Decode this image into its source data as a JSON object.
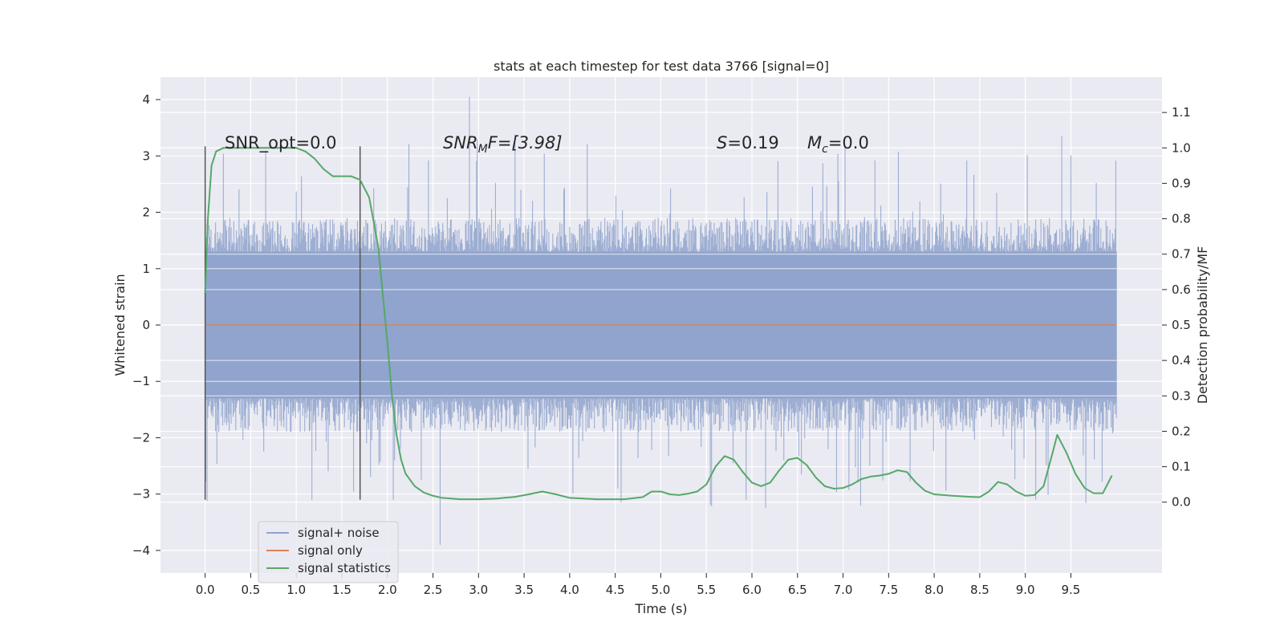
{
  "chart_data": {
    "type": "line",
    "title": "stats at each timestep for test data 3766 [signal=0]",
    "xlabel": "Time (s)",
    "ylabel_left": "Whitened strain",
    "ylabel_right": "Detection probability/MF",
    "xlim": [
      -0.49,
      10.5
    ],
    "ylim_left": [
      -4.4,
      4.4
    ],
    "ylim_right": [
      -0.2,
      1.2
    ],
    "x_ticks": [
      "0.0",
      "0.5",
      "1.0",
      "1.5",
      "2.0",
      "2.5",
      "3.0",
      "3.5",
      "4.0",
      "4.5",
      "5.0",
      "5.5",
      "6.0",
      "6.5",
      "7.0",
      "7.5",
      "8.0",
      "8.5",
      "9.0",
      "9.5"
    ],
    "y_ticks_left": [
      "4",
      "3",
      "2",
      "1",
      "0",
      "−1",
      "−2",
      "−3",
      "−4"
    ],
    "y_ticks_right": [
      "1.1",
      "1.0",
      "0.9",
      "0.8",
      "0.7",
      "0.6",
      "0.5",
      "0.4",
      "0.3",
      "0.2",
      "0.1",
      "0.0"
    ],
    "grid": true,
    "legend_position": "lower-left",
    "series": [
      {
        "name": "signal+ noise",
        "color": "#8fa3cc",
        "axis": "left",
        "x_range": [
          0.0,
          10.0
        ],
        "y_core_range": [
          -1.3,
          1.3
        ],
        "y_typical_envelope": [
          -1.9,
          1.9
        ],
        "y_extremes": [
          -3.9,
          4.05
        ],
        "description_points": [
          {
            "x": 2.9,
            "y": 4.05
          },
          {
            "x": 2.58,
            "y": -3.9
          },
          {
            "x": 3.4,
            "y": 3.38
          },
          {
            "x": 9.4,
            "y": 3.35
          }
        ]
      },
      {
        "name": "signal only",
        "color": "#dd8452",
        "axis": "left",
        "x": [
          0.0,
          10.0
        ],
        "y": [
          0.0,
          0.0
        ]
      },
      {
        "name": "signal statistics",
        "color": "#55a868",
        "axis": "right",
        "x": [
          0.0,
          0.03,
          0.07,
          0.12,
          0.2,
          0.35,
          0.5,
          0.7,
          0.9,
          1.0,
          1.1,
          1.2,
          1.3,
          1.4,
          1.5,
          1.6,
          1.7,
          1.8,
          1.9,
          2.0,
          2.05,
          2.1,
          2.15,
          2.2,
          2.3,
          2.4,
          2.5,
          2.6,
          2.8,
          3.0,
          3.2,
          3.4,
          3.55,
          3.7,
          3.85,
          4.0,
          4.3,
          4.6,
          4.8,
          4.9,
          5.0,
          5.1,
          5.2,
          5.3,
          5.4,
          5.5,
          5.6,
          5.7,
          5.8,
          5.9,
          6.0,
          6.1,
          6.2,
          6.3,
          6.4,
          6.5,
          6.6,
          6.7,
          6.8,
          6.9,
          7.0,
          7.1,
          7.2,
          7.3,
          7.4,
          7.5,
          7.6,
          7.7,
          7.8,
          7.9,
          8.0,
          8.2,
          8.4,
          8.5,
          8.6,
          8.7,
          8.8,
          8.9,
          9.0,
          9.1,
          9.2,
          9.3,
          9.35,
          9.45,
          9.55,
          9.65,
          9.75,
          9.85,
          9.95
        ],
        "y": [
          0.59,
          0.8,
          0.95,
          0.99,
          1.0,
          1.0,
          1.0,
          1.0,
          1.0,
          1.0,
          0.99,
          0.97,
          0.94,
          0.92,
          0.92,
          0.92,
          0.91,
          0.86,
          0.72,
          0.45,
          0.3,
          0.19,
          0.12,
          0.08,
          0.045,
          0.027,
          0.018,
          0.012,
          0.008,
          0.008,
          0.01,
          0.015,
          0.022,
          0.03,
          0.022,
          0.012,
          0.008,
          0.008,
          0.014,
          0.03,
          0.03,
          0.022,
          0.02,
          0.024,
          0.03,
          0.05,
          0.1,
          0.13,
          0.12,
          0.085,
          0.055,
          0.045,
          0.055,
          0.09,
          0.12,
          0.125,
          0.105,
          0.07,
          0.045,
          0.038,
          0.04,
          0.05,
          0.065,
          0.072,
          0.075,
          0.08,
          0.09,
          0.085,
          0.055,
          0.032,
          0.022,
          0.018,
          0.015,
          0.014,
          0.03,
          0.057,
          0.05,
          0.03,
          0.018,
          0.02,
          0.045,
          0.14,
          0.19,
          0.14,
          0.08,
          0.04,
          0.025,
          0.025,
          0.075
        ]
      }
    ],
    "vlines": {
      "color": "#555555",
      "x": [
        0.0,
        1.7
      ],
      "y_range_left": [
        -3.1,
        3.17
      ]
    },
    "annotations": {
      "snr_opt": "SNR_opt=0.0",
      "snr_mf_prefix": "SNR",
      "snr_mf_sub": "M",
      "snr_mf_suffix": "F=[3.98]",
      "s_italic": "S",
      "s_value": "=0.19",
      "mc_italic": "M",
      "mc_sub": "c",
      "mc_value": "=0.0"
    },
    "colors": {
      "plot_background": "#eaeaf2",
      "grid": "#ffffff",
      "text": "#262626"
    }
  }
}
